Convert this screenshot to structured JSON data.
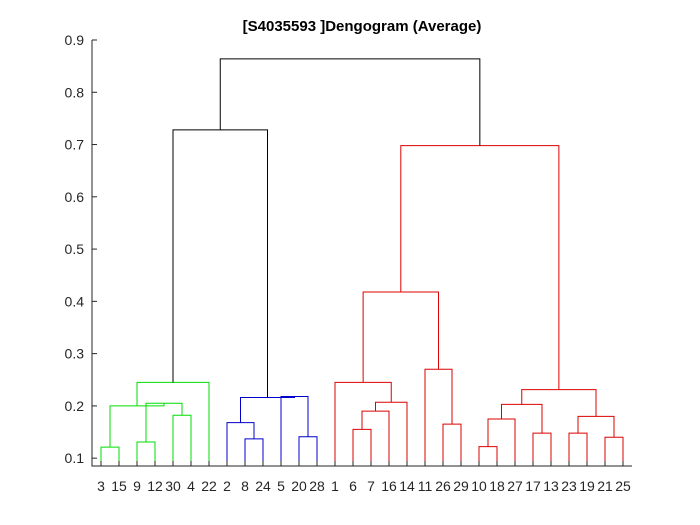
{
  "chart_data": {
    "type": "dendrogram",
    "title": "[S4035593 ]Dengogram (Average)",
    "xlabel": "",
    "ylabel": "",
    "ylim": [
      0.085,
      0.9
    ],
    "yticks": [
      "0.1",
      "0.2",
      "0.3",
      "0.4",
      "0.5",
      "0.6",
      "0.7",
      "0.8",
      "0.9"
    ],
    "leaf_order": [
      "3",
      "15",
      "9",
      "12",
      "30",
      "4",
      "22",
      "2",
      "8",
      "24",
      "5",
      "20",
      "28",
      "1",
      "6",
      "7",
      "16",
      "14",
      "11",
      "26",
      "29",
      "10",
      "18",
      "27",
      "17",
      "13",
      "23",
      "19",
      "21",
      "25"
    ],
    "colors": {
      "green": "#00dd00",
      "blue": "#0000cc",
      "red": "#dd0000",
      "black": "#000000"
    },
    "links": [
      {
        "left": 1,
        "right": 2,
        "height": 0.121,
        "color": "green"
      },
      {
        "left": 3,
        "right": 4,
        "height": 0.131,
        "color": "green"
      },
      {
        "left": 5,
        "right": 6,
        "height": 0.182,
        "color": "green"
      },
      {
        "left": "L2",
        "right": "L3",
        "height": 0.205,
        "color": "green"
      },
      {
        "left": "L1",
        "right": "L4",
        "height": 0.2,
        "color": "green"
      },
      {
        "left": "L5",
        "right": 7,
        "height": 0.245,
        "color": "green"
      },
      {
        "left": 9,
        "right": 10,
        "height": 0.137,
        "color": "blue"
      },
      {
        "left": 8,
        "right": "L7",
        "height": 0.168,
        "color": "blue"
      },
      {
        "left": 12,
        "right": 13,
        "height": 0.141,
        "color": "blue"
      },
      {
        "left": 11,
        "right": "L9",
        "height": 0.218,
        "color": "blue"
      },
      {
        "left": "L8",
        "right": "L10",
        "height": 0.216,
        "color": "blue"
      },
      {
        "left": "L6",
        "right": "L11",
        "height": 0.728,
        "color": "black"
      },
      {
        "left": 15,
        "right": 16,
        "height": 0.155,
        "color": "red"
      },
      {
        "left": "L13",
        "right": 17,
        "height": 0.19,
        "color": "red"
      },
      {
        "left": "L14",
        "right": 18,
        "height": 0.207,
        "color": "red"
      },
      {
        "left": 14,
        "right": "L15",
        "height": 0.245,
        "color": "red"
      },
      {
        "left": 20,
        "right": 21,
        "height": 0.165,
        "color": "red"
      },
      {
        "left": 19,
        "right": "L17",
        "height": 0.27,
        "color": "red"
      },
      {
        "left": "L16",
        "right": "L18",
        "height": 0.418,
        "color": "red"
      },
      {
        "left": 22,
        "right": 23,
        "height": 0.122,
        "color": "red"
      },
      {
        "left": "L20",
        "right": 24,
        "height": 0.175,
        "color": "red"
      },
      {
        "left": 25,
        "right": 26,
        "height": 0.148,
        "color": "red"
      },
      {
        "left": "L21",
        "right": "L22",
        "height": 0.203,
        "color": "red"
      },
      {
        "left": 27,
        "right": 28,
        "height": 0.148,
        "color": "red"
      },
      {
        "left": 29,
        "right": 30,
        "height": 0.14,
        "color": "red"
      },
      {
        "left": "L24",
        "right": "L25",
        "height": 0.18,
        "color": "red"
      },
      {
        "left": "L23",
        "right": "L26",
        "height": 0.231,
        "color": "red"
      },
      {
        "left": "L19",
        "right": "L27",
        "height": 0.698,
        "color": "red"
      },
      {
        "left": "L12",
        "right": "L28",
        "height": 0.864,
        "color": "black"
      }
    ]
  }
}
